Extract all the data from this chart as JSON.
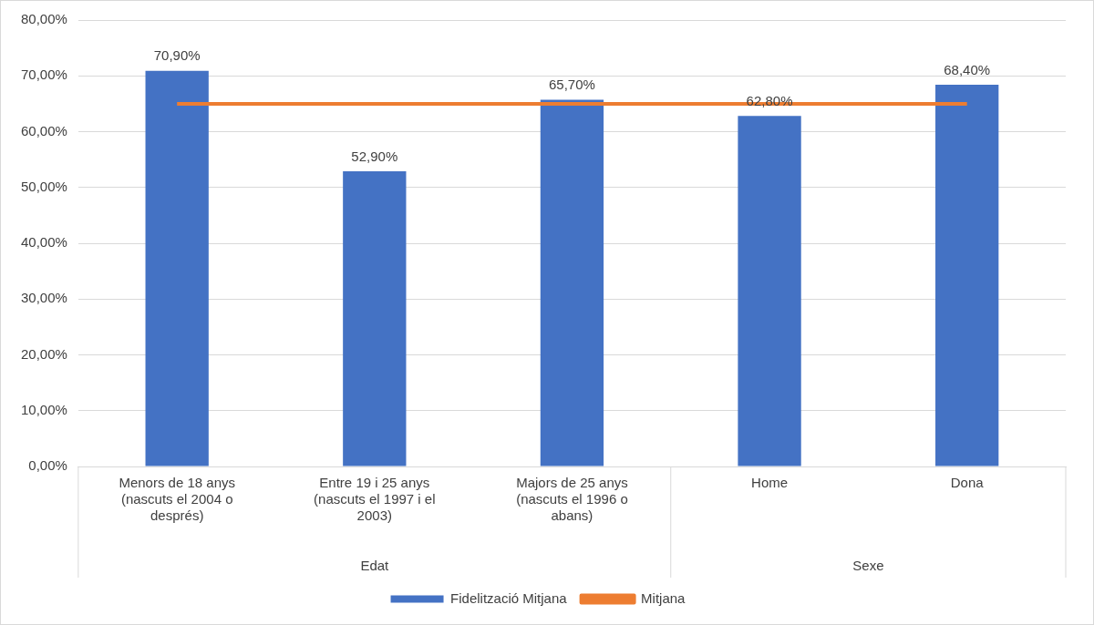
{
  "chart_data": {
    "type": "bar",
    "categories": [
      "Menors de 18 anys (nascuts el 2004 o després)",
      "Entre 19 i 25 anys (nascuts el 1997 i el 2003)",
      "Majors de 25 anys (nascuts el 1996 o abans)",
      "Home",
      "Dona"
    ],
    "series": [
      {
        "name": "Fidelització Mitjana",
        "color": "#4472c4",
        "values": [
          70.9,
          52.9,
          65.7,
          62.8,
          68.4
        ],
        "value_labels": [
          "70,90%",
          "52,90%",
          "65,70%",
          "62,80%",
          "68,40%"
        ]
      },
      {
        "name": "Mitjana",
        "type": "line",
        "color": "#ed7d31",
        "values": [
          65,
          65,
          65,
          65,
          65
        ]
      }
    ],
    "annotations": [
      "Edat",
      "Sexe"
    ],
    "ylim": [
      0,
      80
    ],
    "yticks": [
      {
        "value": 0,
        "label": "0,00%"
      },
      {
        "value": 10,
        "label": "10,00%"
      },
      {
        "value": 20,
        "label": "20,00%"
      },
      {
        "value": 30,
        "label": "30,00%"
      },
      {
        "value": 40,
        "label": "40,00%"
      },
      {
        "value": 50,
        "label": "50,00%"
      },
      {
        "value": 60,
        "label": "60,00%"
      },
      {
        "value": 70,
        "label": "70,00%"
      },
      {
        "value": 80,
        "label": "80,00%"
      }
    ],
    "grid": "y",
    "legend": "bottom",
    "marker": "none",
    "line_style": "solid"
  }
}
